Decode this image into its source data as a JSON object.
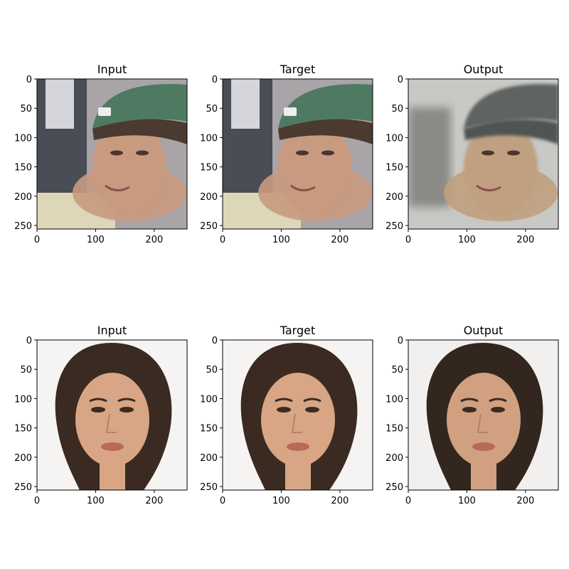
{
  "figure": {
    "rows": [
      {
        "panels": [
          {
            "title": "Input",
            "subject": "young man with backward green-and-brown baseball cap, blurred street background",
            "colors": {
              "cap": "#4f7a62",
              "cap_brim": "#4a3a30",
              "skin": "#c89a80",
              "background": "#a8a4a8"
            }
          },
          {
            "title": "Target",
            "subject": "young man with backward green-and-brown baseball cap, blurred street background",
            "colors": {
              "cap": "#4f7a62",
              "cap_brim": "#4a3a30",
              "skin": "#c89a80",
              "background": "#a8a4a8"
            }
          },
          {
            "title": "Output",
            "subject": "blurred generated face of a young man with dark swept hair",
            "colors": {
              "cap": "#5e6462",
              "cap_brim": "#4f5552",
              "skin": "#c0a080",
              "background": "#c8c8c4"
            }
          }
        ]
      },
      {
        "panels": [
          {
            "title": "Input",
            "subject": "woman with dark voluminous hair, front-facing portrait on white background",
            "colors": {
              "hair": "#3a2a22",
              "skin": "#d8a684",
              "background": "#f6f4f2"
            }
          },
          {
            "title": "Target",
            "subject": "woman with dark voluminous hair, front-facing portrait on white background",
            "colors": {
              "hair": "#3a2a22",
              "skin": "#d8a684",
              "background": "#f6f4f2"
            }
          },
          {
            "title": "Output",
            "subject": "generated face of a woman with dark hair, front-facing portrait",
            "colors": {
              "hair": "#32261f",
              "skin": "#d0a080",
              "background": "#f2f0ee"
            }
          }
        ]
      }
    ],
    "x_ticks": [
      "0",
      "100",
      "200"
    ],
    "y_ticks": [
      "0",
      "50",
      "100",
      "150",
      "200",
      "250"
    ],
    "axis_range": [
      0,
      256
    ]
  }
}
